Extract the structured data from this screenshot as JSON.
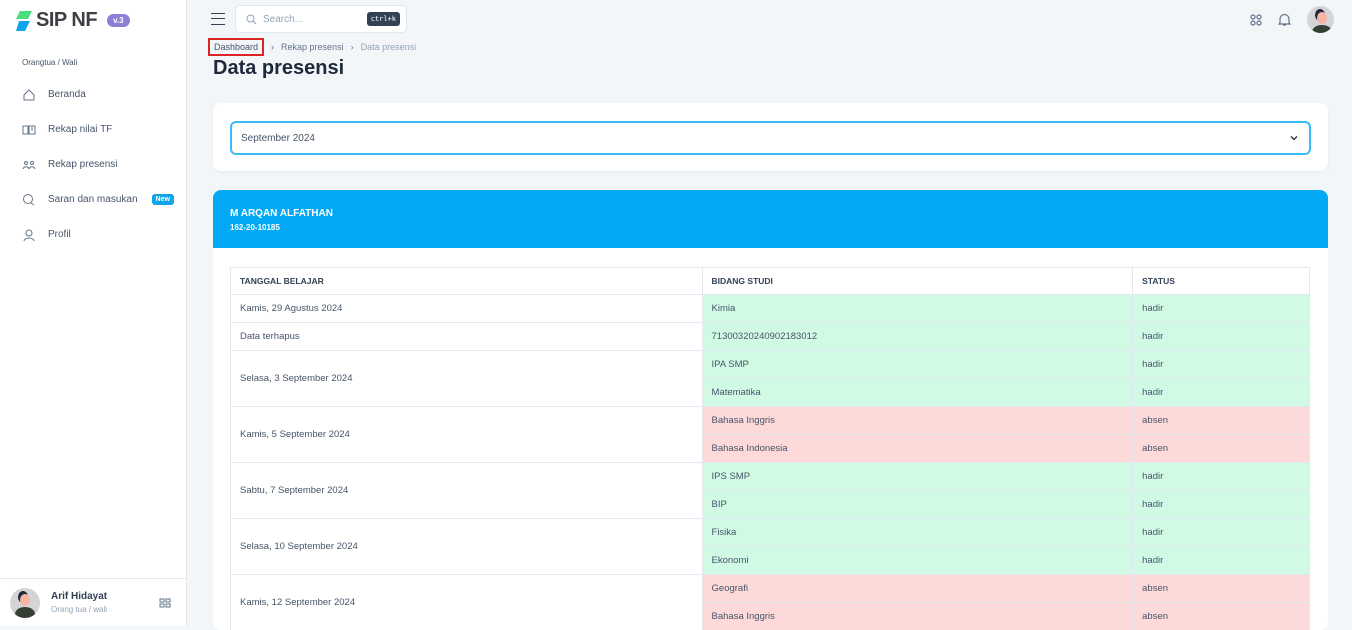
{
  "app": {
    "name": "SIP NF",
    "version": "v.3"
  },
  "sidebar": {
    "role": "Orangtua / Wali",
    "items": [
      {
        "label": "Beranda",
        "icon": "home-icon"
      },
      {
        "label": "Rekap nilai TF",
        "icon": "book-icon"
      },
      {
        "label": "Rekap presensi",
        "icon": "users-icon"
      },
      {
        "label": "Saran dan masukan",
        "icon": "chat-icon",
        "badge": "New"
      },
      {
        "label": "Profil",
        "icon": "user-icon"
      }
    ],
    "user": {
      "name": "Arif Hidayat",
      "role": "Orang tua / wali"
    }
  },
  "search": {
    "placeholder": "Search...",
    "shortcut": "ctrl+k"
  },
  "breadcrumb": [
    "Dashboard",
    "Rekap presensi",
    "Data presensi"
  ],
  "page_title": "Data presensi",
  "filter": {
    "selected": "September 2024"
  },
  "student": {
    "name": "M ARQAN ALFATHAN",
    "id": "162-20-10185"
  },
  "table": {
    "headers": [
      "TANGGAL BELAJAR",
      "BIDANG STUDI",
      "STATUS"
    ],
    "groups": [
      {
        "date": "Kamis, 29 Agustus 2024",
        "rows": [
          {
            "subject": "Kimia",
            "status": "hadir"
          }
        ]
      },
      {
        "date": "Data terhapus",
        "rows": [
          {
            "subject": "71300320240902183012",
            "status": "hadir"
          }
        ]
      },
      {
        "date": "Selasa, 3 September 2024",
        "rows": [
          {
            "subject": "IPA SMP",
            "status": "hadir"
          },
          {
            "subject": "Matematika",
            "status": "hadir"
          }
        ]
      },
      {
        "date": "Kamis, 5 September 2024",
        "rows": [
          {
            "subject": "Bahasa Inggris",
            "status": "absen"
          },
          {
            "subject": "Bahasa Indonesia",
            "status": "absen"
          }
        ]
      },
      {
        "date": "Sabtu, 7 September 2024",
        "rows": [
          {
            "subject": "IPS SMP",
            "status": "hadir"
          },
          {
            "subject": "BIP",
            "status": "hadir"
          }
        ]
      },
      {
        "date": "Selasa, 10 September 2024",
        "rows": [
          {
            "subject": "Fisika",
            "status": "hadir"
          },
          {
            "subject": "Ekonomi",
            "status": "hadir"
          }
        ]
      },
      {
        "date": "Kamis, 12 September 2024",
        "rows": [
          {
            "subject": "Geografi",
            "status": "absen"
          },
          {
            "subject": "Bahasa Inggris",
            "status": "absen"
          }
        ]
      }
    ]
  },
  "colors": {
    "accent": "#03a9f4",
    "present": "#d1fae5",
    "absent": "#fdd9d9"
  }
}
